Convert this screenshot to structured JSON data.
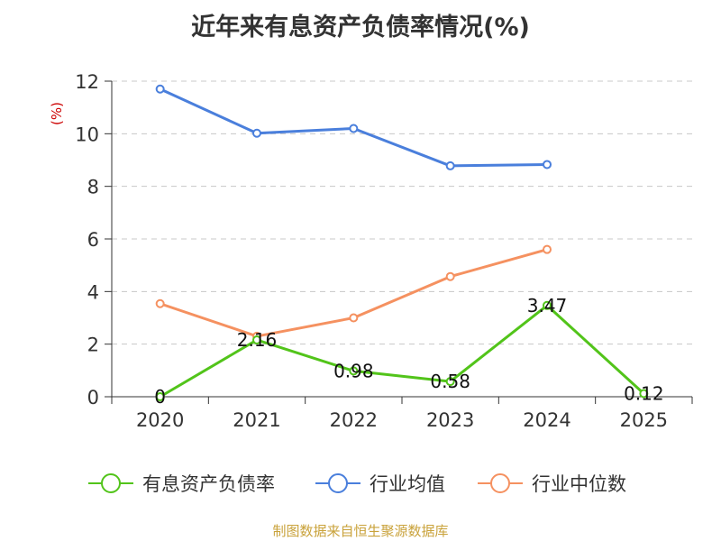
{
  "chart_data": {
    "type": "line",
    "title": "近年来有息资产负债率情况(%)",
    "ylabel": "(%)",
    "xlabel": "",
    "categories": [
      "2020",
      "2021",
      "2022",
      "2023",
      "2024",
      "2025"
    ],
    "ylim": [
      0,
      12
    ],
    "yticks": [
      0,
      2,
      4,
      6,
      8,
      10,
      12
    ],
    "grid": true,
    "legend_position": "bottom",
    "series": [
      {
        "name": "有息资产负债率",
        "color": "#52c41a",
        "values": [
          0,
          2.16,
          0.98,
          0.58,
          3.47,
          0.12
        ],
        "labels": [
          "0",
          "2.16",
          "0.98",
          "0.58",
          "3.47",
          "0.12"
        ]
      },
      {
        "name": "行业均值",
        "color": "#4a7fdc",
        "values": [
          11.7,
          10.02,
          10.2,
          8.78,
          8.83,
          null
        ]
      },
      {
        "name": "行业中位数",
        "color": "#f59160",
        "values": [
          3.54,
          2.3,
          3.0,
          4.57,
          5.6,
          null
        ]
      }
    ]
  },
  "source": "制图数据来自恒生聚源数据库"
}
